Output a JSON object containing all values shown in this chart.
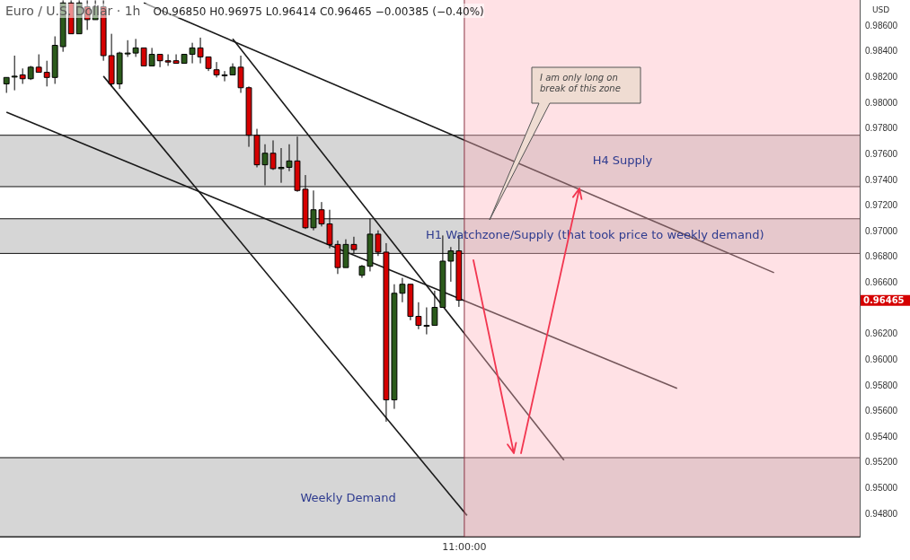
{
  "chart_data": {
    "type": "candlestick",
    "title": "Euro / U.S. Dollar · 1h",
    "subtitle": "O0.96850 H0.96975 L0.96414 C0.96465 −0.00385 (−0.40%)",
    "ylabel": "USD",
    "categories": [
      null,
      null,
      null,
      null,
      null,
      null,
      null,
      null,
      null,
      null,
      null,
      null,
      null,
      null,
      null,
      null,
      null,
      null,
      null,
      null,
      null,
      null,
      null,
      null,
      null,
      null,
      null,
      null,
      null,
      null,
      null,
      null,
      null,
      null,
      null,
      null,
      null,
      null,
      null,
      null,
      null,
      null,
      null,
      null,
      null,
      null,
      null,
      null,
      null,
      null,
      null,
      null,
      null,
      null,
      null,
      null,
      null,
      null,
      null,
      null,
      null,
      null,
      null,
      null,
      null,
      null,
      null,
      null,
      null,
      null,
      null,
      null,
      null,
      null,
      null,
      null,
      null,
      null,
      null,
      null,
      null,
      null,
      null,
      null,
      null,
      null,
      null,
      null,
      null,
      null,
      null,
      null,
      null,
      null,
      null,
      null,
      null,
      null,
      null,
      null,
      null,
      null,
      null,
      null,
      null,
      null
    ],
    "ohlc": [
      [
        0.9815,
        0.982,
        0.9808,
        0.982
      ],
      [
        0.9821,
        0.9837,
        0.981,
        0.9821
      ],
      [
        0.9822,
        0.9827,
        0.9815,
        0.9819
      ],
      [
        0.9819,
        0.9829,
        0.9818,
        0.9828
      ],
      [
        0.9828,
        0.9838,
        0.9824,
        0.9824
      ],
      [
        0.9824,
        0.9833,
        0.9813,
        0.982
      ],
      [
        0.982,
        0.9852,
        0.9815,
        0.9845
      ],
      [
        0.9844,
        0.988,
        0.984,
        0.9878
      ],
      [
        0.9878,
        0.988,
        0.9854,
        0.9854
      ],
      [
        0.9854,
        0.988,
        0.9854,
        0.9878
      ],
      [
        0.9875,
        0.988,
        0.9857,
        0.9865
      ],
      [
        0.9865,
        0.988,
        0.9865,
        0.9875
      ],
      [
        0.9875,
        0.988,
        0.9833,
        0.9837
      ],
      [
        0.9837,
        0.9854,
        0.9813,
        0.9815
      ],
      [
        0.9815,
        0.984,
        0.9811,
        0.9839
      ],
      [
        0.9839,
        0.9849,
        0.9836,
        0.9839
      ],
      [
        0.9839,
        0.985,
        0.9836,
        0.9843
      ],
      [
        0.9843,
        0.9843,
        0.9829,
        0.9829
      ],
      [
        0.9829,
        0.9843,
        0.9829,
        0.9838
      ],
      [
        0.9838,
        0.9838,
        0.9828,
        0.9833
      ],
      [
        0.9833,
        0.9838,
        0.9829,
        0.9832
      ],
      [
        0.9833,
        0.9838,
        0.9831,
        0.9831
      ],
      [
        0.9831,
        0.9838,
        0.9831,
        0.9838
      ],
      [
        0.9838,
        0.9847,
        0.9831,
        0.9843
      ],
      [
        0.9843,
        0.9851,
        0.9831,
        0.9836
      ],
      [
        0.9836,
        0.9836,
        0.9825,
        0.9827
      ],
      [
        0.9826,
        0.9832,
        0.982,
        0.9822
      ],
      [
        0.9822,
        0.9825,
        0.9817,
        0.9822
      ],
      [
        0.9822,
        0.9831,
        0.9822,
        0.9828
      ],
      [
        0.9828,
        0.9837,
        0.9808,
        0.9812
      ],
      [
        0.9812,
        0.9813,
        0.9766,
        0.9775
      ],
      [
        0.9775,
        0.978,
        0.975,
        0.9752
      ],
      [
        0.9752,
        0.9768,
        0.9736,
        0.9761
      ],
      [
        0.9761,
        0.9771,
        0.9748,
        0.9749
      ],
      [
        0.9749,
        0.9765,
        0.9738,
        0.975
      ],
      [
        0.975,
        0.9768,
        0.9747,
        0.9755
      ],
      [
        0.9755,
        0.9774,
        0.9731,
        0.9732
      ],
      [
        0.9733,
        0.9744,
        0.9702,
        0.9703
      ],
      [
        0.9703,
        0.9732,
        0.9701,
        0.9717
      ],
      [
        0.9717,
        0.9723,
        0.9704,
        0.9706
      ],
      [
        0.9706,
        0.9717,
        0.9687,
        0.969
      ],
      [
        0.969,
        0.9693,
        0.9667,
        0.9672
      ],
      [
        0.9672,
        0.9694,
        0.9672,
        0.969
      ],
      [
        0.969,
        0.9696,
        0.9683,
        0.9686
      ],
      [
        0.9666,
        0.9674,
        0.9664,
        0.9673
      ],
      [
        0.9673,
        0.971,
        0.9669,
        0.9698
      ],
      [
        0.9698,
        0.9701,
        0.9681,
        0.9684
      ],
      [
        0.9684,
        0.9691,
        0.9552,
        0.9569
      ],
      [
        0.9569,
        0.9659,
        0.9562,
        0.9652
      ],
      [
        0.9652,
        0.9664,
        0.9645,
        0.9659
      ],
      [
        0.9659,
        0.9659,
        0.9631,
        0.9634
      ],
      [
        0.9634,
        0.9645,
        0.9624,
        0.9627
      ],
      [
        0.9627,
        0.9641,
        0.962,
        0.9627
      ],
      [
        0.9627,
        0.9654,
        0.9627,
        0.9641
      ],
      [
        0.9641,
        0.9697,
        0.9641,
        0.9677
      ],
      [
        0.9677,
        0.9688,
        0.9661,
        0.9685
      ],
      [
        0.9685,
        0.96975,
        0.96414,
        0.96465
      ],
      null,
      null,
      null,
      null,
      null,
      null,
      null,
      null,
      null,
      null,
      null,
      null,
      null,
      null,
      null,
      null,
      null,
      null,
      null,
      null,
      null,
      null,
      null,
      null,
      null,
      null,
      null,
      null,
      null,
      null,
      null,
      null,
      null,
      null,
      null,
      null,
      null,
      null,
      null,
      null,
      null,
      null,
      null,
      null,
      null,
      null,
      null,
      null,
      null
    ],
    "colors": [
      "#2b5a1b",
      "#2b5a1b",
      "#d50000",
      "#2b5a1b",
      "#d50000",
      "#d50000",
      "#2b5a1b",
      "#2b5a1b",
      "#d50000",
      "#2b5a1b",
      "#d50000",
      "#2b5a1b",
      "#d50000",
      "#d50000",
      "#2b5a1b",
      "#2b5a1b",
      "#2b5a1b",
      "#d50000",
      "#2b5a1b",
      "#d50000",
      "#d50000",
      "#d50000",
      "#2b5a1b",
      "#2b5a1b",
      "#d50000",
      "#d50000",
      "#d50000",
      "#2b5a1b",
      "#2b5a1b",
      "#d50000",
      "#d50000",
      "#d50000",
      "#2b5a1b",
      "#d50000",
      "#2b5a1b",
      "#2b5a1b",
      "#d50000",
      "#d50000",
      "#2b5a1b",
      "#d50000",
      "#d50000",
      "#d50000",
      "#2b5a1b",
      "#d50000",
      "#2b5a1b",
      "#2b5a1b",
      "#d50000",
      "#d50000",
      "#2b5a1b",
      "#2b5a1b",
      "#d50000",
      "#d50000",
      "#2b5a1b",
      "#2b5a1b",
      "#2b5a1b",
      "#2b5a1b",
      "#d50000",
      null,
      null,
      null,
      null,
      null,
      null,
      null,
      null,
      null,
      null,
      null,
      null,
      null,
      null,
      null,
      null,
      null,
      null,
      null,
      null,
      null,
      null,
      null,
      null,
      null,
      null,
      null,
      null,
      null,
      null,
      null,
      null,
      null,
      null,
      null,
      null,
      null,
      null,
      null,
      null,
      null,
      null,
      null,
      null,
      null,
      null,
      null,
      null,
      null
    ],
    "series": [
      {
        "type": "line",
        "color": "#1a1a1a",
        "values": [
          null,
          null,
          null,
          null,
          null,
          null,
          null,
          null,
          null,
          null,
          null,
          null,
          null,
          null,
          null,
          null,
          null,
          0.9878,
          null,
          null,
          null,
          null,
          null,
          null,
          null,
          null,
          null,
          null,
          null,
          null,
          null,
          null,
          null,
          null,
          null,
          null,
          null,
          null,
          null,
          null,
          null,
          null,
          null,
          null,
          null,
          null,
          null,
          null,
          null,
          null,
          null,
          null,
          null,
          null,
          null,
          null,
          null,
          null,
          null,
          null,
          null,
          null,
          null,
          null,
          null,
          null,
          null,
          null,
          null,
          null,
          null,
          null,
          null,
          null,
          null,
          null,
          null,
          null,
          null,
          null,
          null,
          null,
          null,
          null,
          null,
          null,
          null,
          null,
          null,
          null,
          null,
          null,
          null,
          null,
          null,
          0.9668,
          null,
          null,
          null,
          null,
          null,
          null,
          null,
          null,
          null,
          null
        ]
      },
      {
        "type": "line",
        "color": "#1a1a1a",
        "values": [
          0.9793,
          null,
          null,
          null,
          null,
          null,
          null,
          null,
          null,
          null,
          null,
          null,
          null,
          null,
          null,
          null,
          null,
          null,
          null,
          null,
          null,
          null,
          null,
          null,
          null,
          null,
          null,
          null,
          null,
          null,
          null,
          null,
          null,
          null,
          null,
          null,
          null,
          null,
          null,
          null,
          null,
          null,
          null,
          null,
          null,
          null,
          null,
          null,
          null,
          null,
          null,
          null,
          null,
          null,
          null,
          null,
          null,
          null,
          null,
          null,
          null,
          null,
          null,
          null,
          null,
          null,
          null,
          null,
          null,
          null,
          null,
          null,
          null,
          null,
          null,
          null,
          null,
          null,
          null,
          null,
          null,
          null,
          null,
          0.9578,
          null,
          null,
          null,
          null,
          null,
          null,
          null,
          null,
          null,
          null,
          null,
          null,
          null,
          null,
          null,
          null,
          null,
          null,
          null,
          null,
          null,
          null
        ]
      },
      {
        "type": "line",
        "color": "#1a1a1a",
        "values": [
          null,
          null,
          null,
          null,
          null,
          null,
          null,
          null,
          null,
          null,
          null,
          null,
          null,
          null,
          null,
          null,
          null,
          null,
          null,
          null,
          null,
          null,
          null,
          null,
          null,
          null,
          null,
          null,
          0.985,
          null,
          null,
          null,
          null,
          null,
          null,
          null,
          null,
          null,
          null,
          null,
          null,
          null,
          null,
          null,
          null,
          null,
          null,
          null,
          null,
          null,
          null,
          null,
          null,
          null,
          null,
          null,
          null,
          null,
          null,
          null,
          null,
          null,
          null,
          null,
          null,
          null,
          null,
          null,
          null,
          0.9522,
          null,
          null,
          null,
          null,
          null,
          null,
          null,
          null,
          null,
          null,
          null,
          null,
          null,
          null,
          null,
          null,
          null,
          null,
          null,
          null,
          null,
          null,
          null,
          null,
          null,
          null,
          null,
          null,
          null,
          null,
          null,
          null,
          null,
          null,
          null,
          null
        ]
      },
      {
        "type": "line",
        "color": "#1a1a1a",
        "values": [
          null,
          null,
          null,
          null,
          null,
          null,
          null,
          null,
          null,
          null,
          null,
          null,
          0.9821,
          null,
          null,
          null,
          null,
          null,
          null,
          null,
          null,
          null,
          null,
          null,
          null,
          null,
          null,
          null,
          null,
          null,
          null,
          null,
          null,
          null,
          null,
          null,
          null,
          null,
          null,
          null,
          null,
          null,
          null,
          null,
          null,
          null,
          null,
          null,
          null,
          null,
          null,
          null,
          null,
          null,
          null,
          null,
          null,
          0.9479,
          null,
          null,
          null,
          null,
          null,
          null,
          null,
          null,
          null,
          null,
          null,
          null,
          null,
          null,
          null,
          null,
          null,
          null,
          null,
          null,
          null,
          null,
          null,
          null,
          null,
          null,
          null,
          null,
          null,
          null,
          null,
          null,
          null,
          null,
          null,
          null,
          null,
          null,
          null,
          null,
          null,
          null,
          null,
          null,
          null,
          null,
          null,
          null
        ]
      }
    ],
    "ylim": [
      0.94625,
      0.98803
    ],
    "yticks": [
      {
        "value": 0.948,
        "label": "0.94800"
      },
      {
        "value": 0.95,
        "label": "0.95000"
      },
      {
        "value": 0.952,
        "label": "0.95200"
      },
      {
        "value": 0.954,
        "label": "0.95400"
      },
      {
        "value": 0.956,
        "label": "0.95600"
      },
      {
        "value": 0.958,
        "label": "0.95800"
      },
      {
        "value": 0.96,
        "label": "0.96000"
      },
      {
        "value": 0.962,
        "label": "0.96200"
      },
      {
        "value": 0.966,
        "label": "0.96600"
      },
      {
        "value": 0.968,
        "label": "0.96800"
      },
      {
        "value": 0.97,
        "label": "0.97000"
      },
      {
        "value": 0.972,
        "label": "0.97200"
      },
      {
        "value": 0.974,
        "label": "0.97400"
      },
      {
        "value": 0.976,
        "label": "0.97600"
      },
      {
        "value": 0.978,
        "label": "0.97800"
      },
      {
        "value": 0.98,
        "label": "0.98000"
      },
      {
        "value": 0.982,
        "label": "0.98200"
      },
      {
        "value": 0.984,
        "label": "0.98400"
      },
      {
        "value": 0.986,
        "label": "0.98600"
      }
    ],
    "bands": [
      {
        "axis": "y",
        "from": 0.9735,
        "to": 0.9775,
        "color": "#d6d6d6",
        "label": "H4 Supply"
      },
      {
        "axis": "y",
        "from": 0.9683,
        "to": 0.971,
        "color": "#d6d6d6",
        "label": "H1 Watchzone/Supply (that took price to weekly demand)"
      },
      {
        "axis": "y",
        "from": 0.94625,
        "to": 0.9524,
        "color": "#d6d6d6",
        "label": "Weekly Demand"
      }
    ],
    "annotations": [
      "I am only long on break of this zone",
      "0.96465",
      "11:00:00"
    ]
  }
}
